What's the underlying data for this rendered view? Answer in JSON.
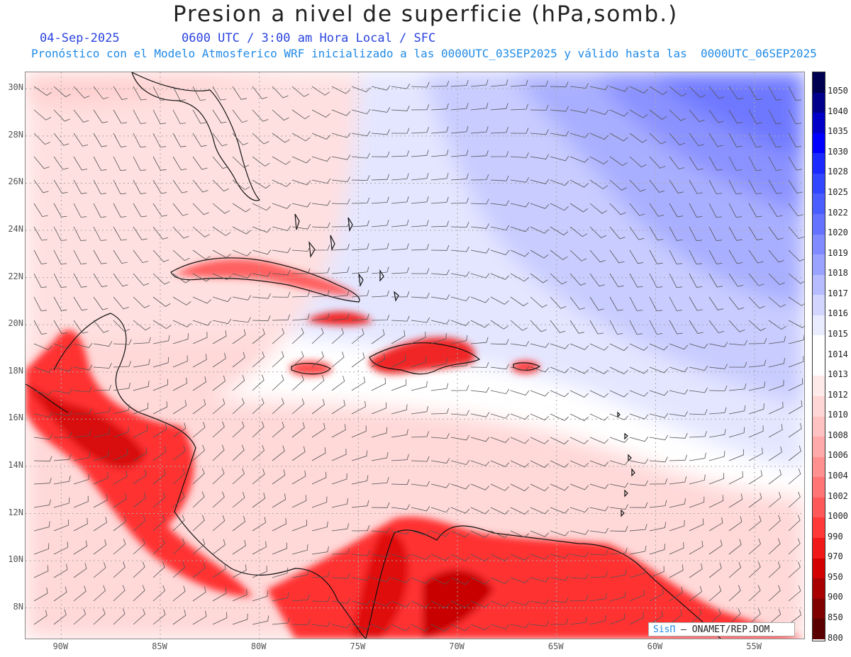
{
  "header": {
    "title": "Presion a nivel de superficie (hPa,somb.)",
    "date": "04-Sep-2025",
    "time_info": "0600 UTC / 3:00 am Hora Local / SFC",
    "forecast_info": "Pronóstico con el Modelo Atmosferico WRF inicializado a las 0000UTC_03SEP2025 y válido hasta las  0000UTC_06SEP2025"
  },
  "axes": {
    "lat_labels": [
      "30N",
      "28N",
      "26N",
      "24N",
      "22N",
      "20N",
      "18N",
      "16N",
      "14N",
      "12N",
      "10N",
      "8N"
    ],
    "lat_values": [
      30,
      28,
      26,
      24,
      22,
      20,
      18,
      16,
      14,
      12,
      10,
      8
    ],
    "lon_labels": [
      "90W",
      "85W",
      "80W",
      "75W",
      "70W",
      "65W",
      "60W",
      "55W"
    ],
    "lon_values": [
      -90,
      -85,
      -80,
      -75,
      -70,
      -65,
      -60,
      -55
    ],
    "lat_range": [
      6.7,
      30.7
    ],
    "lon_range": [
      -91.8,
      -52.5
    ]
  },
  "colorbar": {
    "levels": [
      "1050",
      "1040",
      "1035",
      "1030",
      "1028",
      "1025",
      "1022",
      "1020",
      "1019",
      "1018",
      "1017",
      "1016",
      "1015",
      "1014",
      "1013",
      "1012",
      "1010",
      "1008",
      "1006",
      "1004",
      "1002",
      "1000",
      "990",
      "970",
      "950",
      "900",
      "850",
      "800"
    ],
    "colors": [
      "#000050",
      "#00008c",
      "#0000c8",
      "#0000ff",
      "#1a2aff",
      "#3046ff",
      "#4a5dff",
      "#6472ff",
      "#7f8bff",
      "#9aa3ff",
      "#b6bcff",
      "#d2d6ff",
      "#e9ebff",
      "#ffffff",
      "#ffffff",
      "#ffeaea",
      "#ffd6d6",
      "#ffc2c2",
      "#ffaaaa",
      "#ff9090",
      "#ff7474",
      "#ff5858",
      "#ff3838",
      "#f01818",
      "#d20000",
      "#a80000",
      "#800000",
      "#5a0000"
    ]
  },
  "map": {
    "field": "sea level pressure",
    "units": "hPa",
    "overlays": [
      "wind-barbs",
      "coastlines",
      "lat-lon-grid"
    ]
  },
  "credit": {
    "brand": "SisΠ",
    "org": " – ONAMET/REP.DOM."
  }
}
